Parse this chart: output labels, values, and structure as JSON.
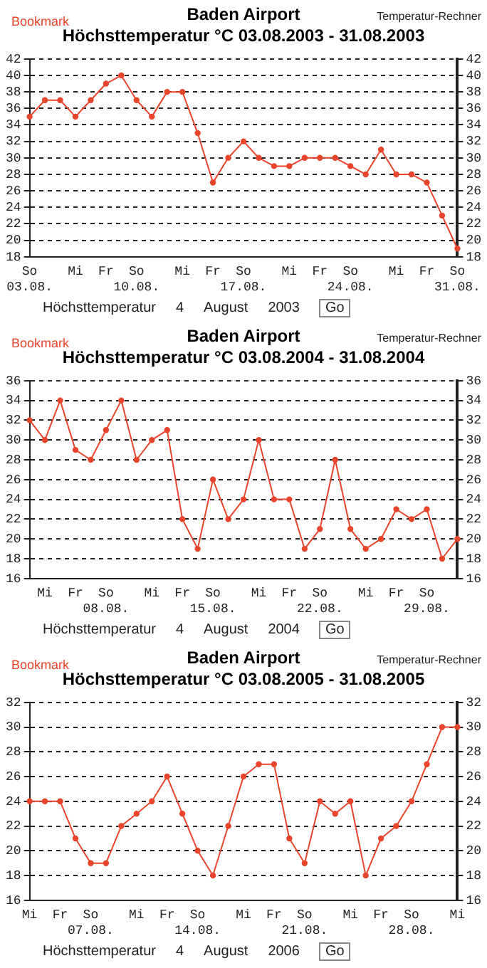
{
  "chart_data": [
    {
      "type": "line",
      "title": "Baden Airport",
      "subtitle": "Höchsttemperatur °C 03.08.2003 - 31.08.2003",
      "annotations": [
        "Bookmark",
        "Temperatur-Rechner",
        "Höchsttemperatur",
        "4",
        "August",
        "2003",
        "Go"
      ],
      "categories": [
        "So 03.08.",
        null,
        null,
        "Mi",
        null,
        "Fr",
        null,
        "So 10.08.",
        null,
        null,
        "Mi",
        null,
        "Fr",
        null,
        "So 17.08.",
        null,
        null,
        "Mi",
        null,
        "Fr",
        null,
        "So 24.08.",
        null,
        null,
        "Mi",
        null,
        "Fr",
        null,
        "So 31.08."
      ],
      "series": [
        {
          "color": "#e8452c",
          "values": [
            35,
            37,
            37,
            35,
            37,
            39,
            40,
            37,
            35,
            38,
            38,
            33,
            27,
            30,
            32,
            30,
            29,
            29,
            30,
            30,
            30,
            29,
            28,
            31,
            28,
            28,
            27,
            23,
            19
          ]
        }
      ],
      "ylim": [
        18,
        42
      ],
      "yticks": [
        18,
        20,
        22,
        24,
        26,
        28,
        30,
        32,
        34,
        36,
        38,
        40,
        42
      ],
      "y2lim": [
        18,
        42
      ],
      "y2ticks": [
        18,
        20,
        22,
        24,
        26,
        28,
        30,
        32,
        34,
        36,
        38,
        40,
        42
      ],
      "grid": "y",
      "legend": false,
      "marker": "circle",
      "line_style": "solid"
    },
    {
      "type": "line",
      "title": "Baden Airport",
      "subtitle": "Höchsttemperatur °C 03.08.2004 - 31.08.2004",
      "annotations": [
        "Bookmark",
        "Temperatur-Rechner",
        "Höchsttemperatur",
        "4",
        "August",
        "2004",
        "Go"
      ],
      "categories": [
        null,
        "Mi",
        null,
        "Fr",
        null,
        "So 08.08.",
        null,
        null,
        "Mi",
        null,
        "Fr",
        null,
        "So 15.08.",
        null,
        null,
        "Mi",
        null,
        "Fr",
        null,
        "So 22.08.",
        null,
        null,
        "Mi",
        null,
        "Fr",
        null,
        "So 29.08.",
        null,
        null
      ],
      "series": [
        {
          "color": "#e8452c",
          "values": [
            32,
            30,
            34,
            29,
            28,
            31,
            34,
            28,
            30,
            31,
            22,
            19,
            26,
            22,
            24,
            30,
            24,
            24,
            19,
            21,
            28,
            21,
            19,
            20,
            23,
            22,
            23,
            18,
            20
          ]
        }
      ],
      "ylim": [
        16,
        36
      ],
      "yticks": [
        16,
        18,
        20,
        22,
        24,
        26,
        28,
        30,
        32,
        34,
        36
      ],
      "y2lim": [
        16,
        36
      ],
      "y2ticks": [
        16,
        18,
        20,
        22,
        24,
        26,
        28,
        30,
        32,
        34,
        36
      ],
      "grid": "y",
      "legend": false,
      "marker": "circle",
      "line_style": "solid"
    },
    {
      "type": "line",
      "title": "Baden Airport",
      "subtitle": "Höchsttemperatur °C 03.08.2005 - 31.08.2005",
      "annotations": [
        "Bookmark",
        "Temperatur-Rechner",
        "Höchsttemperatur",
        "4",
        "August",
        "2006",
        "Go"
      ],
      "categories": [
        "Mi",
        null,
        "Fr",
        null,
        "So 07.08.",
        null,
        null,
        "Mi",
        null,
        "Fr",
        null,
        "So 14.08.",
        null,
        null,
        "Mi",
        null,
        "Fr",
        null,
        "So 21.08.",
        null,
        null,
        "Mi",
        null,
        "Fr",
        null,
        "So 28.08.",
        null,
        null,
        "Mi"
      ],
      "series": [
        {
          "color": "#e8452c",
          "values": [
            24,
            24,
            24,
            21,
            19,
            19,
            22,
            23,
            24,
            26,
            23,
            20,
            18,
            22,
            26,
            27,
            27,
            21,
            19,
            24,
            23,
            24,
            18,
            21,
            22,
            24,
            27,
            30,
            30
          ]
        }
      ],
      "ylim": [
        16,
        32
      ],
      "yticks": [
        16,
        18,
        20,
        22,
        24,
        26,
        28,
        30,
        32
      ],
      "y2lim": [
        16,
        32
      ],
      "y2ticks": [
        16,
        18,
        20,
        22,
        24,
        26,
        28,
        30,
        32
      ],
      "grid": "y",
      "legend": false,
      "marker": "circle",
      "line_style": "solid"
    }
  ]
}
